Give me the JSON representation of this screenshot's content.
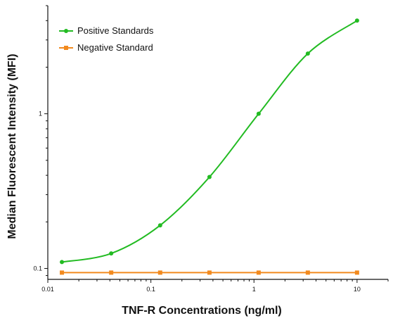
{
  "chart_data": {
    "type": "line",
    "xlabel": "TNF-R Concentrations (ng/ml)",
    "ylabel": "Median  Fluorescent Intensity  (MFI)",
    "xscale": "log",
    "yscale": "log",
    "xlim": [
      0.01,
      20
    ],
    "ylim": [
      0.085,
      5
    ],
    "x_ticks": [
      {
        "value": 0.01,
        "label": "0.01"
      },
      {
        "value": 0.1,
        "label": "0.1"
      },
      {
        "value": 1,
        "label": "1"
      },
      {
        "value": 10,
        "label": "10"
      }
    ],
    "y_ticks": [
      {
        "value": 0.1,
        "label": "0.1"
      },
      {
        "value": 1,
        "label": "1"
      }
    ],
    "legend_position": "top-left",
    "grid": false,
    "series": [
      {
        "name": "Positive Standards",
        "color": "#22bb22",
        "marker": "circle",
        "smooth": true,
        "x": [
          0.0137,
          0.0412,
          0.123,
          0.37,
          1.11,
          3.33,
          10
        ],
        "y": [
          0.11,
          0.125,
          0.19,
          0.39,
          1.0,
          2.45,
          4.0
        ]
      },
      {
        "name": "Negative Standard",
        "color": "#f28a1e",
        "marker": "square",
        "smooth": false,
        "x": [
          0.0137,
          0.0412,
          0.123,
          0.37,
          1.11,
          3.33,
          10
        ],
        "y": [
          0.094,
          0.094,
          0.094,
          0.094,
          0.094,
          0.094,
          0.094
        ]
      }
    ]
  }
}
